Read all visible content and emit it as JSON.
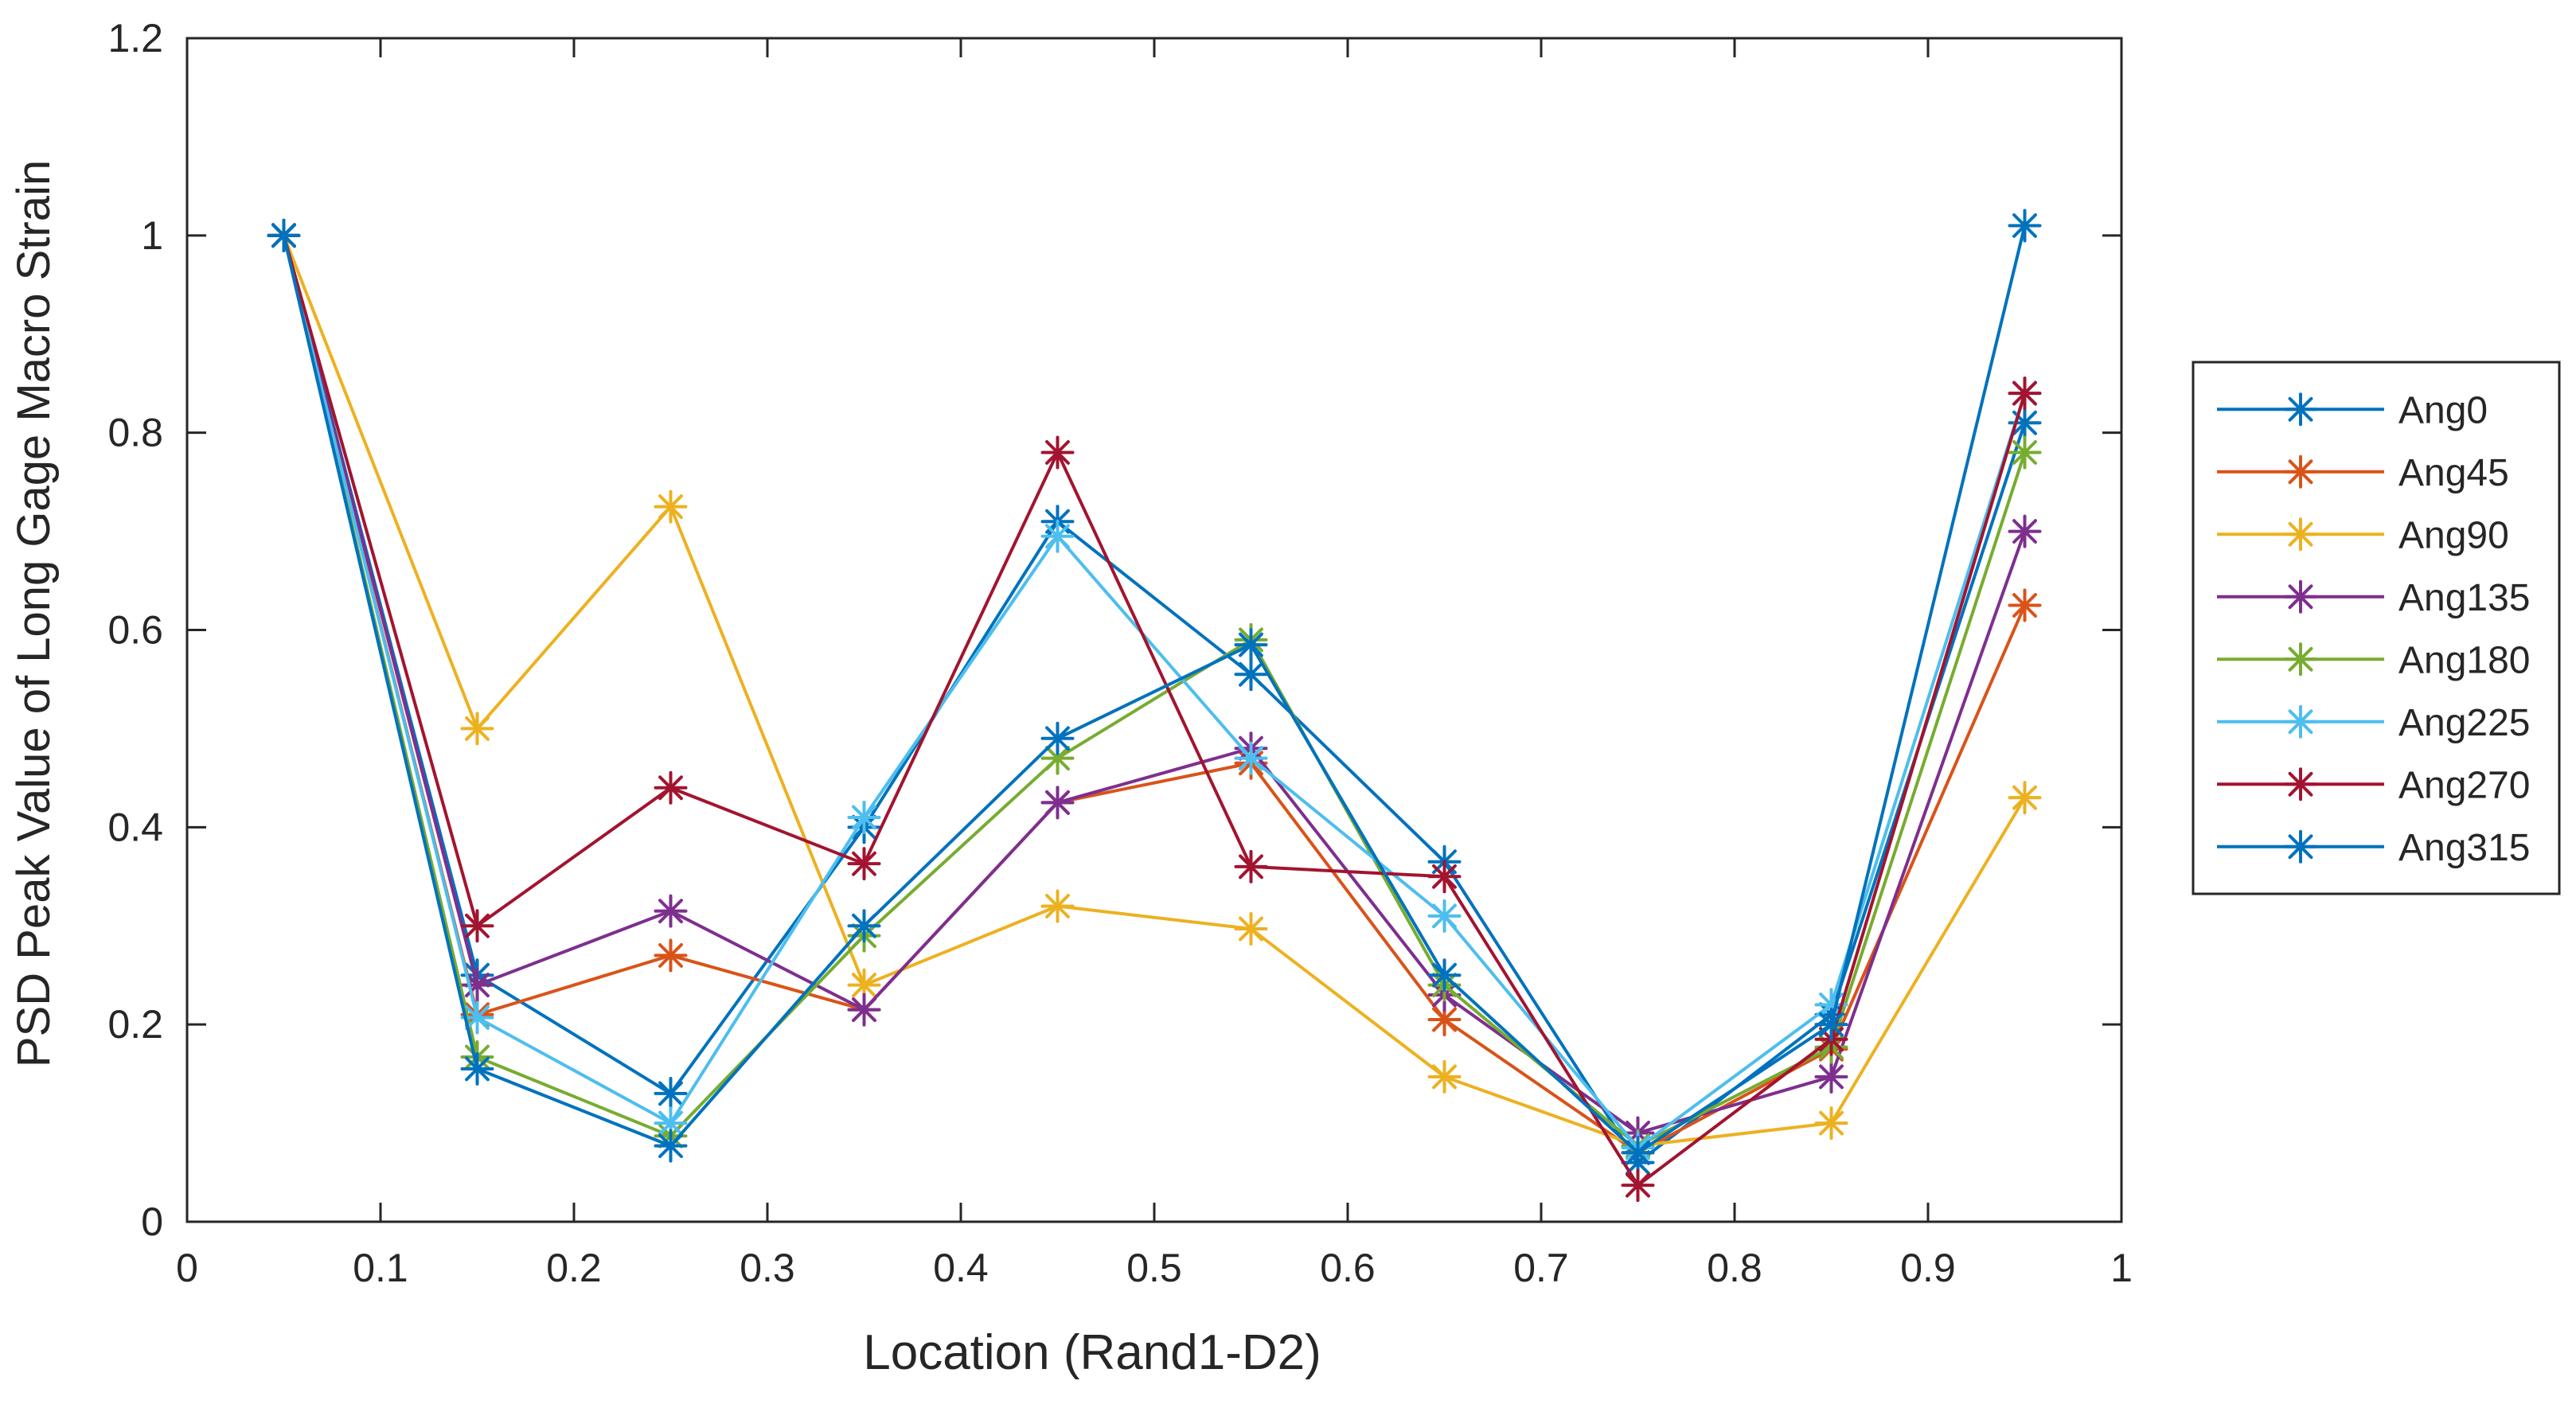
{
  "chart_data": {
    "type": "line",
    "title": "",
    "xlabel": "Location (Rand1-D2)",
    "ylabel": "PSD Peak Value of Long Gage Macro Strain",
    "xlim": [
      0,
      1
    ],
    "ylim": [
      0,
      1.2
    ],
    "xticks": [
      0,
      0.1,
      0.2,
      0.3,
      0.4,
      0.5,
      0.6,
      0.7,
      0.8,
      0.9,
      1
    ],
    "xtick_labels": [
      "0",
      "0.1",
      "0.2",
      "0.3",
      "0.4",
      "0.5",
      "0.6",
      "0.7",
      "0.8",
      "0.9",
      "1"
    ],
    "yticks": [
      0,
      0.2,
      0.4,
      0.6,
      0.8,
      1,
      1.2
    ],
    "ytick_labels": [
      "0",
      "0.2",
      "0.4",
      "0.6",
      "0.8",
      "1",
      "1.2"
    ],
    "grid": false,
    "legend_position": "outside-right",
    "marker": "asterisk",
    "x": [
      0.05,
      0.15,
      0.25,
      0.35,
      0.45,
      0.55,
      0.65,
      0.75,
      0.85,
      0.95
    ],
    "series": [
      {
        "name": "Ang0",
        "color": "#0072BD",
        "values": [
          1.0,
          0.25,
          0.13,
          0.4,
          0.71,
          0.555,
          0.365,
          0.06,
          0.21,
          0.81
        ]
      },
      {
        "name": "Ang45",
        "color": "#D95319",
        "values": [
          1.0,
          0.21,
          0.27,
          0.215,
          0.425,
          0.465,
          0.205,
          0.07,
          0.175,
          0.625
        ]
      },
      {
        "name": "Ang90",
        "color": "#EDB120",
        "values": [
          1.0,
          0.5,
          0.725,
          0.24,
          0.32,
          0.297,
          0.147,
          0.077,
          0.1,
          0.43
        ]
      },
      {
        "name": "Ang135",
        "color": "#7E2F8E",
        "values": [
          1.0,
          0.24,
          0.315,
          0.215,
          0.425,
          0.48,
          0.23,
          0.09,
          0.147,
          0.7
        ]
      },
      {
        "name": "Ang180",
        "color": "#77AC30",
        "values": [
          1.0,
          0.167,
          0.087,
          0.29,
          0.47,
          0.59,
          0.24,
          0.077,
          0.177,
          0.78
        ]
      },
      {
        "name": "Ang225",
        "color": "#4DBEEE",
        "values": [
          1.0,
          0.207,
          0.1,
          0.41,
          0.695,
          0.47,
          0.31,
          0.075,
          0.22,
          0.84
        ]
      },
      {
        "name": "Ang270",
        "color": "#A2142F",
        "values": [
          1.0,
          0.3,
          0.44,
          0.363,
          0.78,
          0.36,
          0.35,
          0.037,
          0.185,
          0.84
        ]
      },
      {
        "name": "Ang315",
        "color": "#0072BD",
        "values": [
          1.0,
          0.155,
          0.077,
          0.3,
          0.49,
          0.585,
          0.25,
          0.07,
          0.2,
          1.01
        ]
      }
    ]
  }
}
